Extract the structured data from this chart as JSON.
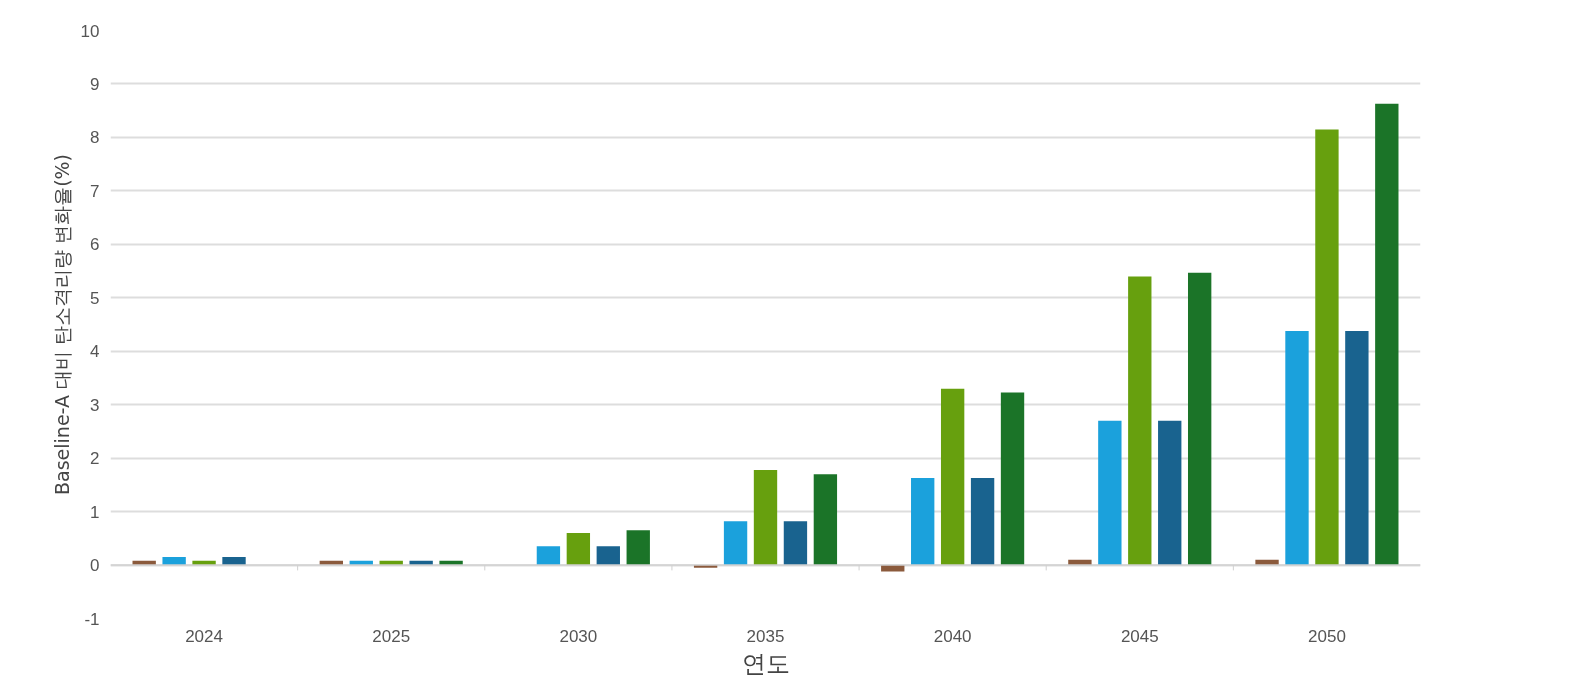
{
  "chart_data": {
    "type": "bar",
    "xlabel": "연도",
    "ylabel": "Baseline-A 대비 탄소격리량 변화율(%)",
    "categories": [
      "2024",
      "2025",
      "2030",
      "2035",
      "2040",
      "2045",
      "2050"
    ],
    "series": [
      {
        "color": "#8b5a3c",
        "values": [
          0.08,
          0.08,
          null,
          -0.05,
          -0.12,
          0.1,
          0.1
        ]
      },
      {
        "color": "#1ba1dc",
        "values": [
          0.15,
          0.08,
          0.35,
          0.82,
          1.63,
          2.7,
          4.38
        ]
      },
      {
        "color": "#67a00e",
        "values": [
          0.08,
          0.08,
          0.6,
          1.78,
          3.3,
          5.4,
          8.15
        ]
      },
      {
        "color": "#19638f",
        "values": [
          0.15,
          0.08,
          0.35,
          0.82,
          1.63,
          2.7,
          4.38
        ]
      },
      {
        "color": "#1b7428",
        "values": [
          null,
          0.08,
          0.65,
          1.7,
          3.23,
          5.47,
          8.63
        ]
      }
    ],
    "ylim": [
      -1,
      10
    ],
    "yticks": [
      -1,
      0,
      1,
      2,
      3,
      4,
      5,
      6,
      7,
      8,
      9,
      10
    ],
    "grid": "y"
  }
}
